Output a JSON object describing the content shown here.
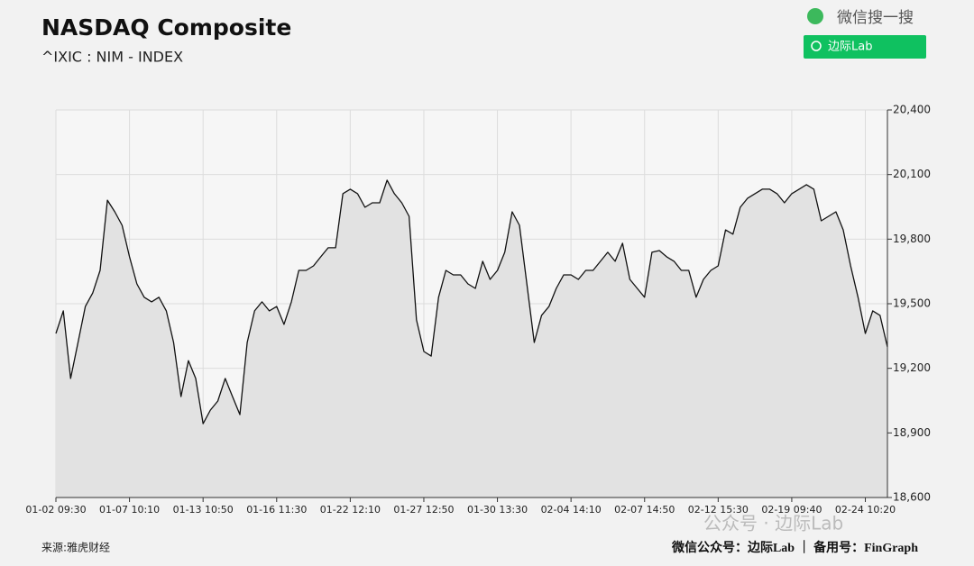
{
  "chart_data": {
    "type": "line",
    "title": "NASDAQ Composite",
    "subtitle": "^IXIC : NIM - INDEX",
    "search_label": "微信搜一搜",
    "search_box": "边际Lab",
    "source": "来源:雅虎财经",
    "footer": "微信公众号：边际Lab ｜ 备用号：FinGraph",
    "watermark": "公众号 · 边际Lab",
    "color": "#111111",
    "fill": "#e2e2e2",
    "grid": true,
    "categories": [
      "01-02 09:30",
      null,
      null,
      null,
      null,
      null,
      null,
      null,
      null,
      null,
      "01-07 10:10",
      null,
      null,
      null,
      null,
      null,
      null,
      null,
      null,
      null,
      "01-13 10:50",
      null,
      null,
      null,
      null,
      null,
      null,
      null,
      null,
      null,
      "01-16 11:30",
      null,
      null,
      null,
      null,
      null,
      null,
      null,
      null,
      null,
      "01-22 12:10",
      null,
      null,
      null,
      null,
      null,
      null,
      null,
      null,
      null,
      "01-27 12:50",
      null,
      null,
      null,
      null,
      null,
      null,
      null,
      null,
      null,
      "01-30 13:30",
      null,
      null,
      null,
      null,
      null,
      null,
      null,
      null,
      null,
      "02-04 14:10",
      null,
      null,
      null,
      null,
      null,
      null,
      null,
      null,
      null,
      "02-07 14:50",
      null,
      null,
      null,
      null,
      null,
      null,
      null,
      null,
      null,
      "02-12 15:30",
      null,
      null,
      null,
      null,
      null,
      null,
      null,
      null,
      null,
      "02-19 09:40",
      null,
      null,
      null,
      null,
      null,
      null,
      null,
      null,
      null,
      "02-24 10:20",
      null,
      null,
      null
    ],
    "values": [
      19362,
      19467,
      19153,
      19320,
      19487,
      19550,
      19655,
      19981,
      19927,
      19864,
      19718,
      19592,
      19530,
      19509,
      19530,
      19467,
      19320,
      19069,
      19236,
      19153,
      18943,
      19006,
      19048,
      19153,
      19069,
      18985,
      19320,
      19467,
      19509,
      19467,
      19487,
      19404,
      19509,
      19655,
      19655,
      19676,
      19718,
      19760,
      19760,
      20011,
      20032,
      20011,
      19948,
      19969,
      19969,
      20074,
      20011,
      19969,
      19906,
      19425,
      19278,
      19257,
      19530,
      19655,
      19634,
      19634,
      19592,
      19571,
      19697,
      19613,
      19655,
      19739,
      19927,
      19864,
      19592,
      19320,
      19446,
      19487,
      19571,
      19634,
      19634,
      19613,
      19655,
      19655,
      19697,
      19739,
      19697,
      19781,
      19613,
      19571,
      19530,
      19739,
      19747,
      19718,
      19697,
      19655,
      19655,
      19530,
      19613,
      19655,
      19676,
      19843,
      19823,
      19948,
      19990,
      20011,
      20032,
      20032,
      20011,
      19969,
      20011,
      20032,
      20053,
      20032,
      19885,
      19906,
      19927,
      19843,
      19676,
      19530,
      19362,
      19467,
      19446,
      19299
    ],
    "ylim": [
      18600,
      20400
    ],
    "yticks": [
      {
        "value": 18600,
        "label": "18,600"
      },
      {
        "value": 18900,
        "label": "18,900"
      },
      {
        "value": 19200,
        "label": "19,200"
      },
      {
        "value": 19500,
        "label": "19,500"
      },
      {
        "value": 19800,
        "label": "19,800"
      },
      {
        "value": 20100,
        "label": "20,100"
      },
      {
        "value": 20400,
        "label": "20,400"
      }
    ]
  }
}
